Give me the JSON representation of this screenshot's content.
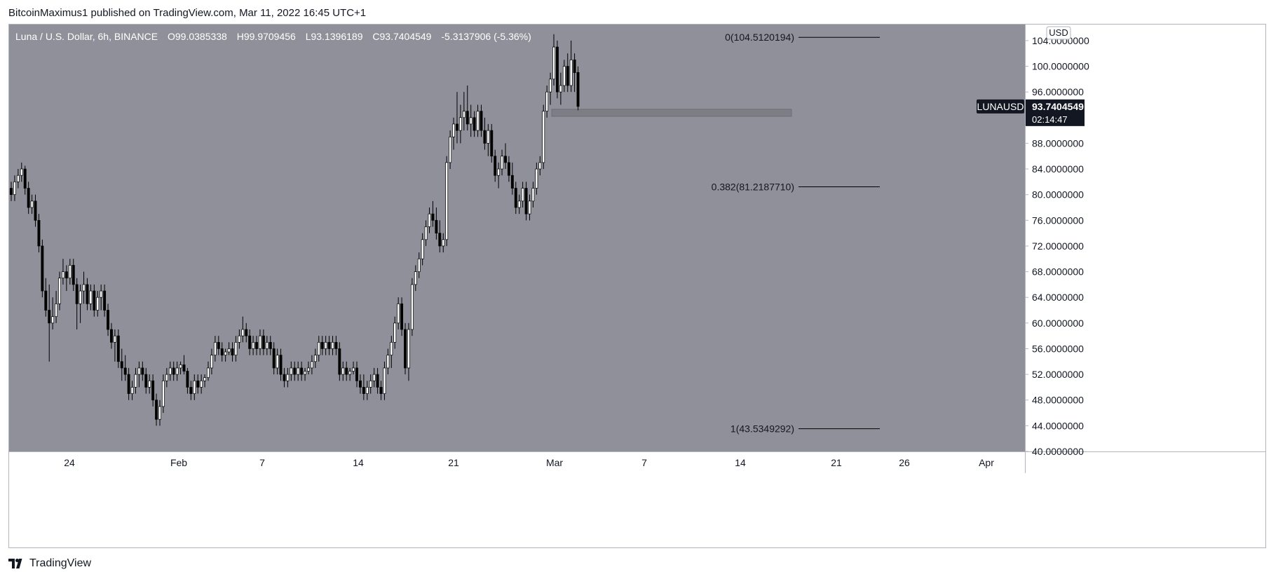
{
  "header": {
    "publisher": "BitcoinMaximus1 published on TradingView.com, Mar 11, 2022 16:45 UTC+1"
  },
  "footer": {
    "brand": "TradingView"
  },
  "legend": {
    "symbol": "Luna / U.S. Dollar, 6h, BINANCE",
    "o_label": "O",
    "o": "99.0385338",
    "h_label": "H",
    "h": "99.9709456",
    "l_label": "L",
    "l": "93.1396189",
    "c_label": "C",
    "c": "93.7404549",
    "change": "-5.3137906 (-5.36%)"
  },
  "price_scale": {
    "currency": "USD",
    "tick_labels": [
      "104.0000000",
      "100.0000000",
      "96.0000000",
      "92.0000000",
      "88.0000000",
      "84.0000000",
      "80.0000000",
      "76.0000000",
      "72.0000000",
      "68.0000000",
      "64.0000000",
      "60.0000000",
      "56.0000000",
      "52.0000000",
      "48.0000000",
      "44.0000000",
      "40.0000000"
    ],
    "tick_values": [
      104,
      100,
      96,
      92,
      88,
      84,
      80,
      76,
      72,
      68,
      64,
      60,
      56,
      52,
      48,
      44,
      40
    ]
  },
  "last_price": {
    "symbol": "LUNAUSD",
    "price": "93.7404549",
    "countdown": "02:14:47"
  },
  "time_axis": {
    "labels": [
      "24",
      "Feb",
      "7",
      "14",
      "21",
      "Mar",
      "7",
      "14",
      "21",
      "26",
      "Apr"
    ]
  },
  "fib": {
    "levels": [
      {
        "label": "0(104.5120194)",
        "value": 104.5120194
      },
      {
        "label": "0.382(81.2187710)",
        "value": 81.218771
      },
      {
        "label": "1(43.5349292)",
        "value": 43.5349292
      }
    ]
  },
  "colors": {
    "plot_bg": "#8f9099",
    "up_fill": "#ffffff",
    "down_fill": "#000000",
    "wick": "#000000",
    "zone": "#7c7d85",
    "fib_line": "#000000",
    "last_price_bg": "#131722"
  },
  "chart_data": {
    "type": "candlestick",
    "title": "Luna / U.S. Dollar, 6h, BINANCE",
    "ylim": [
      40,
      106.5
    ],
    "horizontal_zone": {
      "low": 92.2,
      "high": 93.3
    },
    "series": [
      {
        "name": "LUNAUSD",
        "ohlc": [
          [
            81,
            82,
            79,
            80
          ],
          [
            80,
            83,
            79,
            82
          ],
          [
            82,
            84,
            81,
            83
          ],
          [
            83,
            85,
            82,
            84
          ],
          [
            84,
            84.5,
            80,
            81
          ],
          [
            81,
            82,
            77,
            78
          ],
          [
            78,
            80,
            77,
            79
          ],
          [
            79,
            80,
            75,
            76
          ],
          [
            76,
            77,
            71,
            72
          ],
          [
            72,
            73,
            64,
            65
          ],
          [
            65,
            67,
            61,
            62
          ],
          [
            62,
            66,
            54,
            60
          ],
          [
            60,
            64,
            59,
            61
          ],
          [
            61,
            65,
            60,
            63
          ],
          [
            63,
            68,
            62,
            67
          ],
          [
            67,
            70,
            66,
            68
          ],
          [
            68,
            69,
            65,
            67
          ],
          [
            67,
            70,
            66,
            69
          ],
          [
            69,
            70,
            65,
            66
          ],
          [
            66,
            67,
            59,
            63
          ],
          [
            63,
            66,
            60,
            65
          ],
          [
            65,
            68,
            63,
            66
          ],
          [
            66,
            67,
            62,
            63
          ],
          [
            63,
            66,
            62,
            65
          ],
          [
            65,
            66,
            61,
            62
          ],
          [
            62,
            65,
            61,
            64
          ],
          [
            64,
            66,
            62,
            65
          ],
          [
            65,
            66,
            61,
            62
          ],
          [
            62,
            63,
            58,
            59
          ],
          [
            59,
            60,
            56,
            57
          ],
          [
            57,
            59,
            54,
            58
          ],
          [
            58,
            59,
            53,
            54
          ],
          [
            54,
            56,
            51,
            53
          ],
          [
            53,
            55,
            51,
            52
          ],
          [
            52,
            53,
            48,
            49
          ],
          [
            49,
            51,
            48,
            50
          ],
          [
            50,
            53,
            49,
            52
          ],
          [
            52,
            54,
            50,
            53
          ],
          [
            53,
            54,
            51,
            52
          ],
          [
            52,
            53,
            49,
            50
          ],
          [
            50,
            52,
            49,
            51
          ],
          [
            51,
            52,
            47,
            48
          ],
          [
            48,
            49,
            44,
            45
          ],
          [
            45,
            48,
            44,
            47
          ],
          [
            47,
            52,
            46,
            51
          ],
          [
            51,
            53,
            50,
            52
          ],
          [
            52,
            54,
            51,
            53
          ],
          [
            53,
            54,
            51,
            52
          ],
          [
            52,
            54,
            51,
            53
          ],
          [
            53,
            54,
            52,
            53.5
          ],
          [
            53.5,
            55,
            52,
            52.5
          ],
          [
            52.5,
            53,
            49,
            50
          ],
          [
            50,
            51,
            48,
            49
          ],
          [
            49,
            52,
            48,
            51
          ],
          [
            51,
            52,
            49,
            50
          ],
          [
            50,
            52,
            49,
            51
          ],
          [
            51,
            52,
            50,
            51.5
          ],
          [
            51.5,
            54,
            51,
            53
          ],
          [
            53,
            56,
            52,
            55
          ],
          [
            55,
            58,
            54,
            57
          ],
          [
            57,
            58,
            55,
            56
          ],
          [
            56,
            57,
            54,
            55
          ],
          [
            55,
            56,
            54,
            55.5
          ],
          [
            55.5,
            57,
            55,
            56
          ],
          [
            56,
            57,
            54,
            55
          ],
          [
            55,
            58,
            54,
            57
          ],
          [
            57,
            59,
            56,
            58
          ],
          [
            58,
            61,
            57,
            59
          ],
          [
            59,
            60,
            57,
            58
          ],
          [
            58,
            59,
            55,
            56
          ],
          [
            56,
            58,
            55,
            57
          ],
          [
            57,
            58,
            55,
            56
          ],
          [
            56,
            59,
            55,
            58
          ],
          [
            58,
            59,
            55,
            56
          ],
          [
            56,
            58,
            55,
            57
          ],
          [
            57,
            58,
            55,
            56
          ],
          [
            56,
            57,
            52,
            53
          ],
          [
            53,
            56,
            52,
            55
          ],
          [
            55,
            56,
            51,
            52
          ],
          [
            52,
            53,
            50,
            51
          ],
          [
            51,
            53,
            50,
            52
          ],
          [
            52,
            54,
            51,
            53
          ],
          [
            53,
            54,
            51,
            52
          ],
          [
            52,
            54,
            51,
            53
          ],
          [
            53,
            54,
            51,
            52
          ],
          [
            52,
            53,
            51,
            52.5
          ],
          [
            52.5,
            54,
            52,
            53
          ],
          [
            53,
            55,
            52,
            54
          ],
          [
            54,
            56,
            53,
            55
          ],
          [
            55,
            58,
            54,
            57
          ],
          [
            57,
            58,
            55,
            56
          ],
          [
            56,
            58,
            55,
            57
          ],
          [
            57,
            58,
            55,
            56
          ],
          [
            56,
            58,
            55,
            57
          ],
          [
            57,
            58,
            55,
            56
          ],
          [
            56,
            57,
            51,
            52
          ],
          [
            52,
            54,
            51,
            53
          ],
          [
            53,
            54,
            51,
            52
          ],
          [
            52,
            53,
            51,
            52.5
          ],
          [
            52.5,
            54,
            52,
            53
          ],
          [
            53,
            54,
            50,
            51
          ],
          [
            51,
            52,
            49,
            50
          ],
          [
            50,
            52,
            48,
            49
          ],
          [
            49,
            51,
            48,
            50
          ],
          [
            50,
            52,
            49,
            51
          ],
          [
            51,
            53,
            50,
            52
          ],
          [
            52,
            53,
            49,
            50
          ],
          [
            50,
            51,
            48,
            49
          ],
          [
            49,
            54,
            48,
            53
          ],
          [
            53,
            56,
            52,
            55
          ],
          [
            55,
            58,
            53,
            57
          ],
          [
            57,
            61,
            56,
            60
          ],
          [
            60,
            64,
            59,
            63
          ],
          [
            63,
            64,
            58,
            59
          ],
          [
            59,
            60,
            52,
            53
          ],
          [
            53,
            60,
            51,
            59
          ],
          [
            59,
            67,
            58,
            66
          ],
          [
            66,
            69,
            65,
            68
          ],
          [
            68,
            71,
            67,
            70
          ],
          [
            70,
            74,
            69,
            73
          ],
          [
            73,
            76,
            72,
            75
          ],
          [
            75,
            78,
            74,
            77
          ],
          [
            77,
            79,
            75,
            76
          ],
          [
            76,
            78,
            73,
            74
          ],
          [
            74,
            76,
            71,
            72
          ],
          [
            72,
            74,
            71,
            73
          ],
          [
            73,
            86,
            72,
            85
          ],
          [
            85,
            90,
            84,
            89
          ],
          [
            89,
            92,
            87,
            91
          ],
          [
            91,
            96,
            88,
            90
          ],
          [
            90,
            94,
            88,
            92
          ],
          [
            92,
            96,
            90,
            93
          ],
          [
            93,
            97,
            90,
            91
          ],
          [
            91,
            94,
            89,
            92
          ],
          [
            92,
            93,
            89,
            90
          ],
          [
            90,
            94,
            89,
            93
          ],
          [
            93,
            94,
            89,
            90
          ],
          [
            90,
            92,
            87,
            88
          ],
          [
            88,
            91,
            86,
            90
          ],
          [
            90,
            91,
            85,
            86
          ],
          [
            86,
            87,
            82,
            83
          ],
          [
            83,
            85,
            81,
            84
          ],
          [
            84,
            87,
            83,
            86
          ],
          [
            86,
            88,
            84,
            85
          ],
          [
            85,
            86,
            82,
            83
          ],
          [
            83,
            85,
            80,
            81
          ],
          [
            81,
            82,
            77,
            78
          ],
          [
            78,
            80,
            77,
            79
          ],
          [
            79,
            82,
            78,
            81
          ],
          [
            81,
            82,
            76,
            77
          ],
          [
            77,
            80,
            76,
            79
          ],
          [
            79,
            82,
            78,
            81
          ],
          [
            81,
            85,
            80,
            84
          ],
          [
            84,
            86,
            83,
            85
          ],
          [
            85,
            94,
            84,
            93
          ],
          [
            93,
            97,
            92,
            96
          ],
          [
            96,
            99,
            94,
            98
          ],
          [
            98,
            105,
            97,
            103
          ],
          [
            103,
            104,
            95,
            96
          ],
          [
            96,
            99,
            94,
            97
          ],
          [
            97,
            101,
            96,
            100
          ],
          [
            100,
            102,
            96,
            97
          ],
          [
            97,
            104,
            96,
            101
          ],
          [
            101,
            102,
            96,
            99
          ],
          [
            99.04,
            99.97,
            93.14,
            93.74
          ]
        ]
      }
    ]
  }
}
